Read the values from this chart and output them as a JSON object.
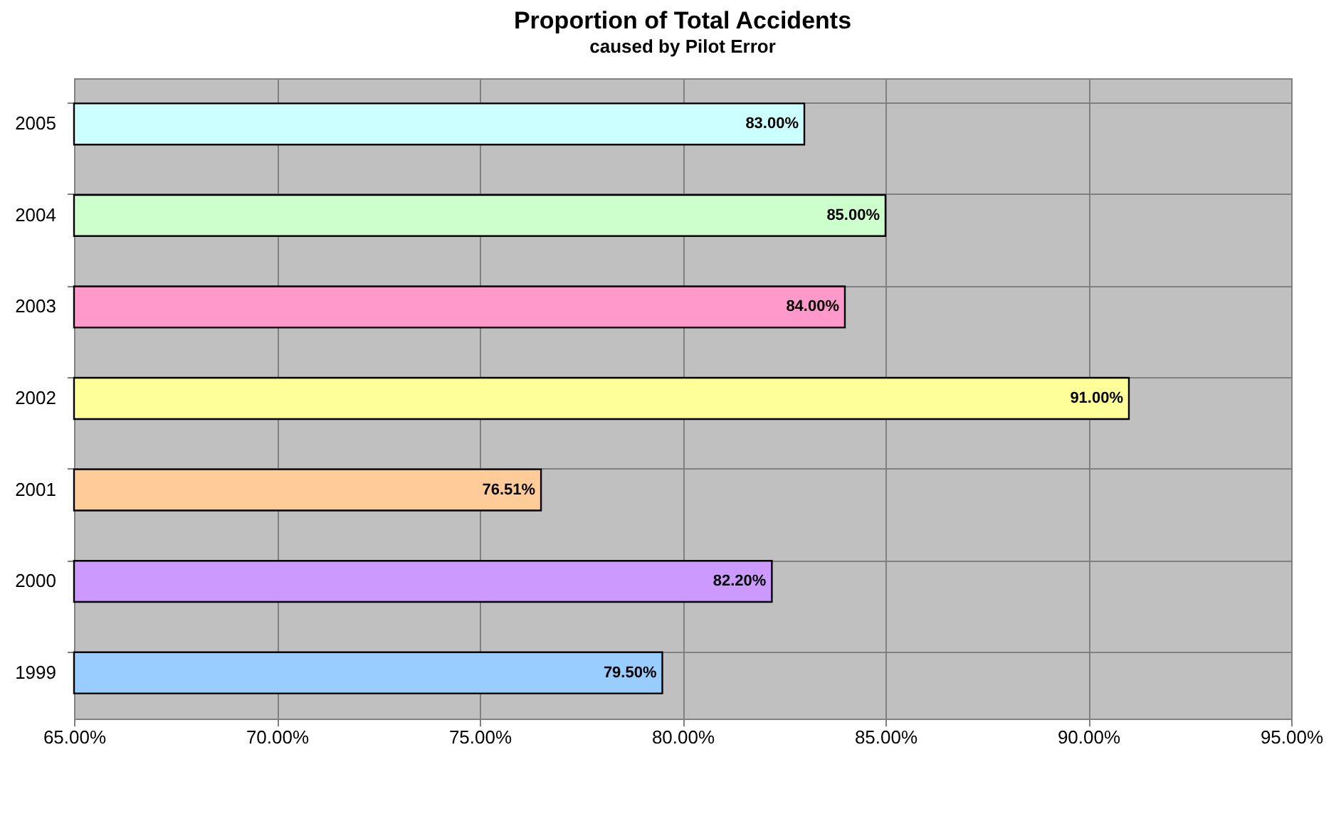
{
  "chart_data": {
    "type": "bar",
    "orientation": "horizontal",
    "title": "Proportion of Total Accidents",
    "subtitle": "caused by Pilot Error",
    "categories": [
      "2005",
      "2004",
      "2003",
      "2002",
      "2001",
      "2000",
      "1999"
    ],
    "values": [
      83,
      85,
      84,
      91,
      76.51,
      82.2,
      79.5
    ],
    "colors": [
      "#ccffff",
      "#ccffcc",
      "#ff99cc",
      "#ffff99",
      "#ffcc99",
      "#cc99ff",
      "#99ccff"
    ],
    "value_labels": [
      "83.00%",
      "85.00%",
      "84.00%",
      "91.00%",
      "76.51%",
      "82.20%",
      "79.50%"
    ],
    "xlim": [
      65,
      95
    ],
    "xticks": [
      {
        "value": 65,
        "label": "65.00%"
      },
      {
        "value": 70,
        "label": "70.00%"
      },
      {
        "value": 75,
        "label": "75.00%"
      },
      {
        "value": 80,
        "label": "80.00%"
      },
      {
        "value": 85,
        "label": "85.00%"
      },
      {
        "value": 90,
        "label": "90.00%"
      },
      {
        "value": 95,
        "label": "95.00%"
      }
    ],
    "grid": true,
    "legend": false
  }
}
